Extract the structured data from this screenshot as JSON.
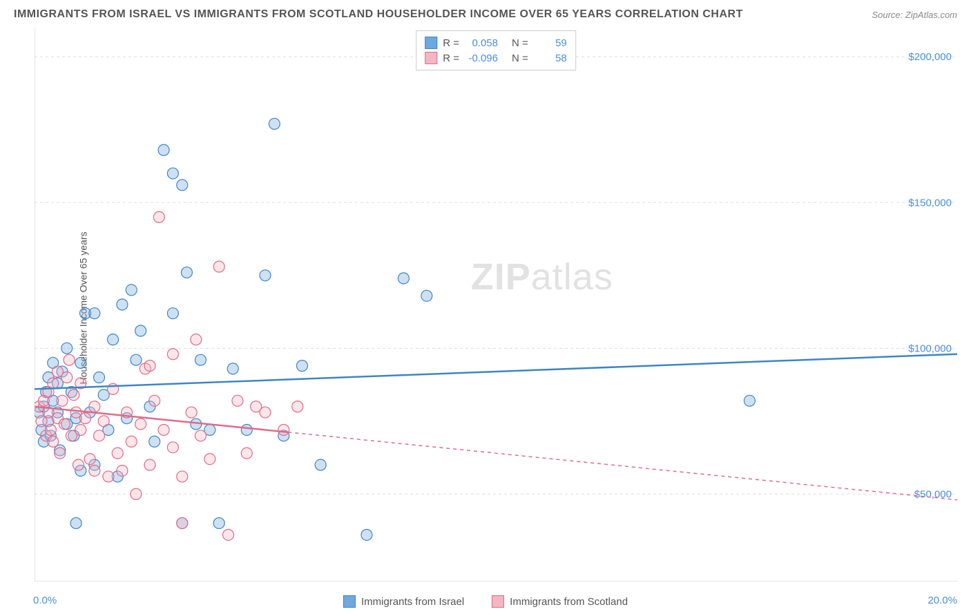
{
  "title": "IMMIGRANTS FROM ISRAEL VS IMMIGRANTS FROM SCOTLAND HOUSEHOLDER INCOME OVER 65 YEARS CORRELATION CHART",
  "source": "Source: ZipAtlas.com",
  "watermark_a": "ZIP",
  "watermark_b": "atlas",
  "chart": {
    "type": "scatter",
    "ylabel": "Householder Income Over 65 years",
    "xlim": [
      0,
      20
    ],
    "ylim": [
      20000,
      210000
    ],
    "x_ticks": [
      0,
      2.86,
      5.71,
      8.57,
      11.43,
      14.29,
      17.14,
      20
    ],
    "x_tick_labels": {
      "left": "0.0%",
      "right": "20.0%"
    },
    "y_gridlines": [
      50000,
      100000,
      150000,
      200000
    ],
    "y_tick_labels": [
      "$50,000",
      "$100,000",
      "$150,000",
      "$200,000"
    ],
    "grid_color": "#dddddd",
    "axis_color": "#cccccc",
    "background_color": "#ffffff",
    "marker_radius": 8,
    "marker_stroke_width": 1.2,
    "marker_fill_opacity": 0.35,
    "trend_line_width": 2.5,
    "label_fontsize": 15,
    "title_fontsize": 16,
    "title_color": "#555555",
    "tick_label_color": "#4a8fd8",
    "series": [
      {
        "name": "Immigrants from Israel",
        "color": "#6fa8dc",
        "stroke": "#3d85c6",
        "trend": {
          "x1": 0,
          "y1": 86000,
          "x2": 20,
          "y2": 98000,
          "dash": "none"
        },
        "stats": {
          "R": "0.058",
          "N": "59"
        },
        "points": [
          [
            0.1,
            78000
          ],
          [
            0.15,
            72000
          ],
          [
            0.2,
            80000
          ],
          [
            0.2,
            68000
          ],
          [
            0.25,
            85000
          ],
          [
            0.3,
            75000
          ],
          [
            0.3,
            90000
          ],
          [
            0.35,
            70000
          ],
          [
            0.4,
            82000
          ],
          [
            0.4,
            95000
          ],
          [
            0.5,
            78000
          ],
          [
            0.5,
            88000
          ],
          [
            0.55,
            65000
          ],
          [
            0.6,
            92000
          ],
          [
            0.7,
            74000
          ],
          [
            0.7,
            100000
          ],
          [
            0.8,
            85000
          ],
          [
            0.85,
            70000
          ],
          [
            0.9,
            76000
          ],
          [
            0.9,
            40000
          ],
          [
            1.0,
            95000
          ],
          [
            1.0,
            58000
          ],
          [
            1.1,
            112000
          ],
          [
            1.2,
            78000
          ],
          [
            1.3,
            112000
          ],
          [
            1.3,
            60000
          ],
          [
            1.4,
            90000
          ],
          [
            1.5,
            84000
          ],
          [
            1.6,
            72000
          ],
          [
            1.7,
            103000
          ],
          [
            1.8,
            56000
          ],
          [
            1.9,
            115000
          ],
          [
            2.0,
            76000
          ],
          [
            2.1,
            120000
          ],
          [
            2.2,
            96000
          ],
          [
            2.3,
            106000
          ],
          [
            2.5,
            80000
          ],
          [
            2.6,
            68000
          ],
          [
            2.8,
            168000
          ],
          [
            3.0,
            160000
          ],
          [
            3.0,
            112000
          ],
          [
            3.2,
            156000
          ],
          [
            3.3,
            126000
          ],
          [
            3.5,
            74000
          ],
          [
            3.6,
            96000
          ],
          [
            3.8,
            72000
          ],
          [
            4.0,
            40000
          ],
          [
            4.3,
            93000
          ],
          [
            4.6,
            72000
          ],
          [
            5.0,
            125000
          ],
          [
            5.2,
            177000
          ],
          [
            5.4,
            70000
          ],
          [
            5.8,
            94000
          ],
          [
            6.2,
            60000
          ],
          [
            7.2,
            36000
          ],
          [
            8.0,
            124000
          ],
          [
            8.5,
            118000
          ],
          [
            15.5,
            82000
          ],
          [
            3.2,
            40000
          ]
        ]
      },
      {
        "name": "Immigrants from Scotland",
        "color": "#f4b6c2",
        "stroke": "#e06989",
        "trend": {
          "x1": 0,
          "y1": 80000,
          "x2": 20,
          "y2": 48000,
          "dash_split": 5.5
        },
        "stats": {
          "R": "-0.096",
          "N": "58"
        },
        "points": [
          [
            0.1,
            80000
          ],
          [
            0.15,
            75000
          ],
          [
            0.2,
            82000
          ],
          [
            0.25,
            70000
          ],
          [
            0.3,
            78000
          ],
          [
            0.3,
            85000
          ],
          [
            0.35,
            72000
          ],
          [
            0.4,
            88000
          ],
          [
            0.4,
            68000
          ],
          [
            0.5,
            76000
          ],
          [
            0.5,
            92000
          ],
          [
            0.55,
            64000
          ],
          [
            0.6,
            82000
          ],
          [
            0.65,
            74000
          ],
          [
            0.7,
            90000
          ],
          [
            0.75,
            96000
          ],
          [
            0.8,
            70000
          ],
          [
            0.85,
            84000
          ],
          [
            0.9,
            78000
          ],
          [
            0.95,
            60000
          ],
          [
            1.0,
            72000
          ],
          [
            1.0,
            88000
          ],
          [
            1.1,
            76000
          ],
          [
            1.2,
            62000
          ],
          [
            1.3,
            58000
          ],
          [
            1.3,
            80000
          ],
          [
            1.4,
            70000
          ],
          [
            1.5,
            75000
          ],
          [
            1.6,
            56000
          ],
          [
            1.7,
            86000
          ],
          [
            1.8,
            64000
          ],
          [
            1.9,
            58000
          ],
          [
            2.0,
            78000
          ],
          [
            2.1,
            68000
          ],
          [
            2.2,
            50000
          ],
          [
            2.3,
            74000
          ],
          [
            2.4,
            93000
          ],
          [
            2.5,
            60000
          ],
          [
            2.6,
            82000
          ],
          [
            2.7,
            145000
          ],
          [
            2.8,
            72000
          ],
          [
            3.0,
            98000
          ],
          [
            3.0,
            66000
          ],
          [
            3.2,
            56000
          ],
          [
            3.2,
            40000
          ],
          [
            3.4,
            78000
          ],
          [
            3.5,
            103000
          ],
          [
            3.6,
            70000
          ],
          [
            3.8,
            62000
          ],
          [
            4.0,
            128000
          ],
          [
            4.2,
            36000
          ],
          [
            4.4,
            82000
          ],
          [
            4.6,
            64000
          ],
          [
            4.8,
            80000
          ],
          [
            5.0,
            78000
          ],
          [
            5.4,
            72000
          ],
          [
            5.7,
            80000
          ],
          [
            2.5,
            94000
          ]
        ]
      }
    ]
  },
  "legend_labels": {
    "R": "R =",
    "N": "N ="
  }
}
